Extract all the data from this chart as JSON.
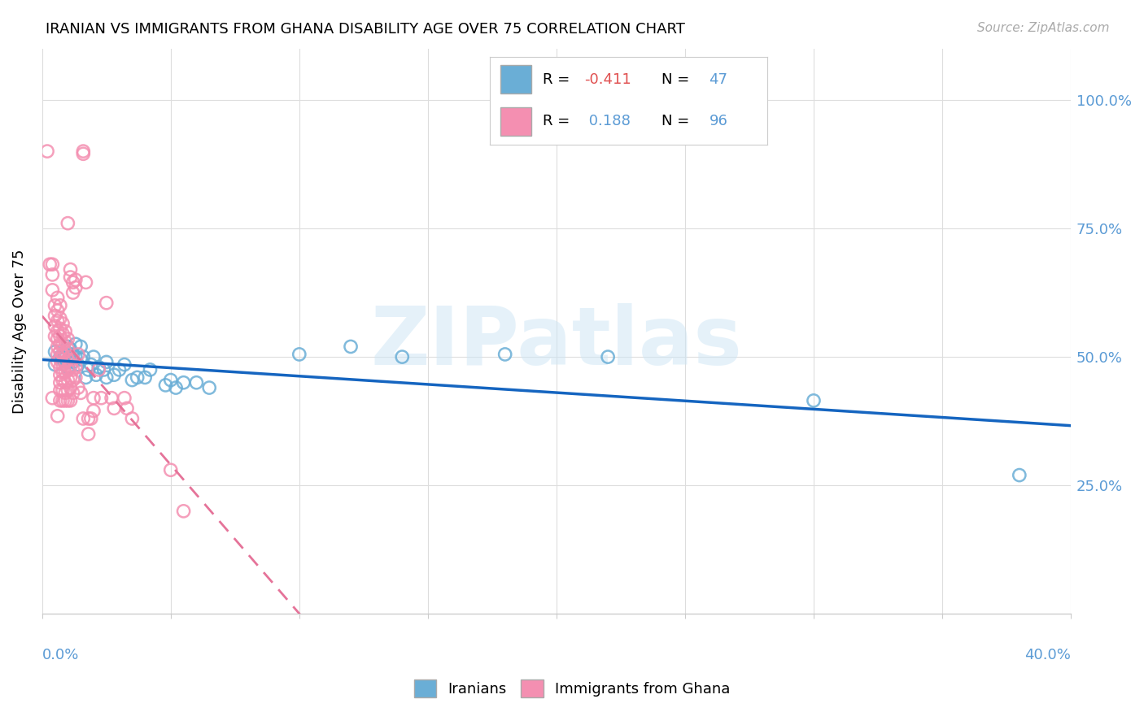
{
  "title": "IRANIAN VS IMMIGRANTS FROM GHANA DISABILITY AGE OVER 75 CORRELATION CHART",
  "source": "Source: ZipAtlas.com",
  "ylabel": "Disability Age Over 75",
  "y_tick_labels": [
    "25.0%",
    "50.0%",
    "75.0%",
    "100.0%"
  ],
  "y_tick_positions": [
    0.25,
    0.5,
    0.75,
    1.0
  ],
  "x_range": [
    0.0,
    0.4
  ],
  "y_range": [
    0.0,
    1.1
  ],
  "watermark": "ZIPatlas",
  "blue_color": "#6aaed6",
  "pink_color": "#f48fb1",
  "blue_line_color": "#1565c0",
  "pink_line_color": "#e57399",
  "iranians_scatter": [
    [
      0.005,
      0.51
    ],
    [
      0.005,
      0.485
    ],
    [
      0.007,
      0.5
    ],
    [
      0.008,
      0.495
    ],
    [
      0.009,
      0.505
    ],
    [
      0.01,
      0.52
    ],
    [
      0.01,
      0.49
    ],
    [
      0.01,
      0.48
    ],
    [
      0.011,
      0.515
    ],
    [
      0.011,
      0.5
    ],
    [
      0.012,
      0.505
    ],
    [
      0.012,
      0.49
    ],
    [
      0.013,
      0.525
    ],
    [
      0.013,
      0.5
    ],
    [
      0.014,
      0.485
    ],
    [
      0.015,
      0.52
    ],
    [
      0.015,
      0.495
    ],
    [
      0.016,
      0.5
    ],
    [
      0.017,
      0.46
    ],
    [
      0.018,
      0.475
    ],
    [
      0.019,
      0.485
    ],
    [
      0.02,
      0.5
    ],
    [
      0.021,
      0.465
    ],
    [
      0.022,
      0.48
    ],
    [
      0.024,
      0.475
    ],
    [
      0.025,
      0.49
    ],
    [
      0.025,
      0.46
    ],
    [
      0.028,
      0.465
    ],
    [
      0.03,
      0.475
    ],
    [
      0.032,
      0.485
    ],
    [
      0.035,
      0.455
    ],
    [
      0.037,
      0.46
    ],
    [
      0.04,
      0.46
    ],
    [
      0.042,
      0.475
    ],
    [
      0.048,
      0.445
    ],
    [
      0.05,
      0.455
    ],
    [
      0.052,
      0.44
    ],
    [
      0.055,
      0.45
    ],
    [
      0.06,
      0.45
    ],
    [
      0.065,
      0.44
    ],
    [
      0.1,
      0.505
    ],
    [
      0.12,
      0.52
    ],
    [
      0.14,
      0.5
    ],
    [
      0.18,
      0.505
    ],
    [
      0.22,
      0.5
    ],
    [
      0.3,
      0.415
    ],
    [
      0.38,
      0.27
    ]
  ],
  "ghana_scatter": [
    [
      0.002,
      0.9
    ],
    [
      0.003,
      0.68
    ],
    [
      0.004,
      0.68
    ],
    [
      0.004,
      0.66
    ],
    [
      0.004,
      0.63
    ],
    [
      0.005,
      0.6
    ],
    [
      0.005,
      0.58
    ],
    [
      0.005,
      0.56
    ],
    [
      0.005,
      0.54
    ],
    [
      0.006,
      0.615
    ],
    [
      0.006,
      0.59
    ],
    [
      0.006,
      0.57
    ],
    [
      0.006,
      0.55
    ],
    [
      0.006,
      0.535
    ],
    [
      0.006,
      0.52
    ],
    [
      0.006,
      0.505
    ],
    [
      0.006,
      0.49
    ],
    [
      0.007,
      0.6
    ],
    [
      0.007,
      0.575
    ],
    [
      0.007,
      0.555
    ],
    [
      0.007,
      0.54
    ],
    [
      0.007,
      0.525
    ],
    [
      0.007,
      0.51
    ],
    [
      0.007,
      0.495
    ],
    [
      0.007,
      0.48
    ],
    [
      0.007,
      0.465
    ],
    [
      0.007,
      0.45
    ],
    [
      0.007,
      0.435
    ],
    [
      0.008,
      0.565
    ],
    [
      0.008,
      0.545
    ],
    [
      0.008,
      0.525
    ],
    [
      0.008,
      0.505
    ],
    [
      0.008,
      0.485
    ],
    [
      0.008,
      0.47
    ],
    [
      0.008,
      0.455
    ],
    [
      0.008,
      0.435
    ],
    [
      0.009,
      0.55
    ],
    [
      0.009,
      0.53
    ],
    [
      0.009,
      0.51
    ],
    [
      0.009,
      0.49
    ],
    [
      0.009,
      0.47
    ],
    [
      0.009,
      0.45
    ],
    [
      0.009,
      0.43
    ],
    [
      0.01,
      0.76
    ],
    [
      0.01,
      0.535
    ],
    [
      0.01,
      0.515
    ],
    [
      0.01,
      0.495
    ],
    [
      0.01,
      0.475
    ],
    [
      0.01,
      0.455
    ],
    [
      0.01,
      0.435
    ],
    [
      0.011,
      0.67
    ],
    [
      0.011,
      0.655
    ],
    [
      0.011,
      0.5
    ],
    [
      0.011,
      0.48
    ],
    [
      0.011,
      0.46
    ],
    [
      0.011,
      0.44
    ],
    [
      0.012,
      0.645
    ],
    [
      0.012,
      0.625
    ],
    [
      0.012,
      0.495
    ],
    [
      0.012,
      0.475
    ],
    [
      0.012,
      0.455
    ],
    [
      0.012,
      0.43
    ],
    [
      0.013,
      0.65
    ],
    [
      0.013,
      0.635
    ],
    [
      0.013,
      0.48
    ],
    [
      0.013,
      0.46
    ],
    [
      0.014,
      0.505
    ],
    [
      0.014,
      0.44
    ],
    [
      0.015,
      0.43
    ],
    [
      0.016,
      0.9
    ],
    [
      0.016,
      0.895
    ],
    [
      0.016,
      0.38
    ],
    [
      0.017,
      0.645
    ],
    [
      0.018,
      0.38
    ],
    [
      0.018,
      0.35
    ],
    [
      0.019,
      0.38
    ],
    [
      0.02,
      0.42
    ],
    [
      0.02,
      0.395
    ],
    [
      0.022,
      0.475
    ],
    [
      0.023,
      0.42
    ],
    [
      0.025,
      0.605
    ],
    [
      0.027,
      0.42
    ],
    [
      0.028,
      0.4
    ],
    [
      0.032,
      0.42
    ],
    [
      0.033,
      0.4
    ],
    [
      0.035,
      0.38
    ],
    [
      0.05,
      0.28
    ],
    [
      0.055,
      0.2
    ],
    [
      0.006,
      0.385
    ],
    [
      0.007,
      0.415
    ],
    [
      0.008,
      0.415
    ],
    [
      0.009,
      0.415
    ],
    [
      0.01,
      0.415
    ],
    [
      0.011,
      0.415
    ],
    [
      0.004,
      0.42
    ]
  ]
}
